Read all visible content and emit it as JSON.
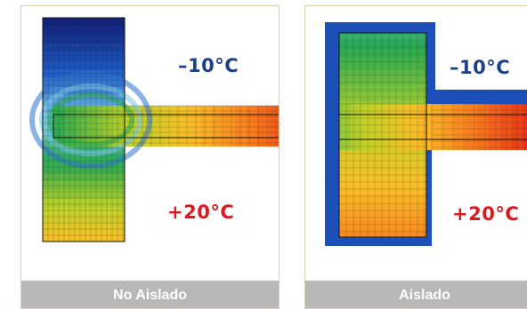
{
  "colors": {
    "cold_label": "#1d3f86",
    "warm_label": "#e0161e",
    "footer_bg": "#b8b8b8",
    "footer_text": "#ffffff",
    "panel_border": "#d8d2ae"
  },
  "chart_data": [
    {
      "type": "heatmap",
      "caption": "No Aislado",
      "outside_temp": "–10°C",
      "inside_temp": "+20°C",
      "insulated": false
    },
    {
      "type": "heatmap",
      "caption": "Aislado",
      "outside_temp": "–10°C",
      "inside_temp": "+20°C",
      "insulated": true
    }
  ]
}
